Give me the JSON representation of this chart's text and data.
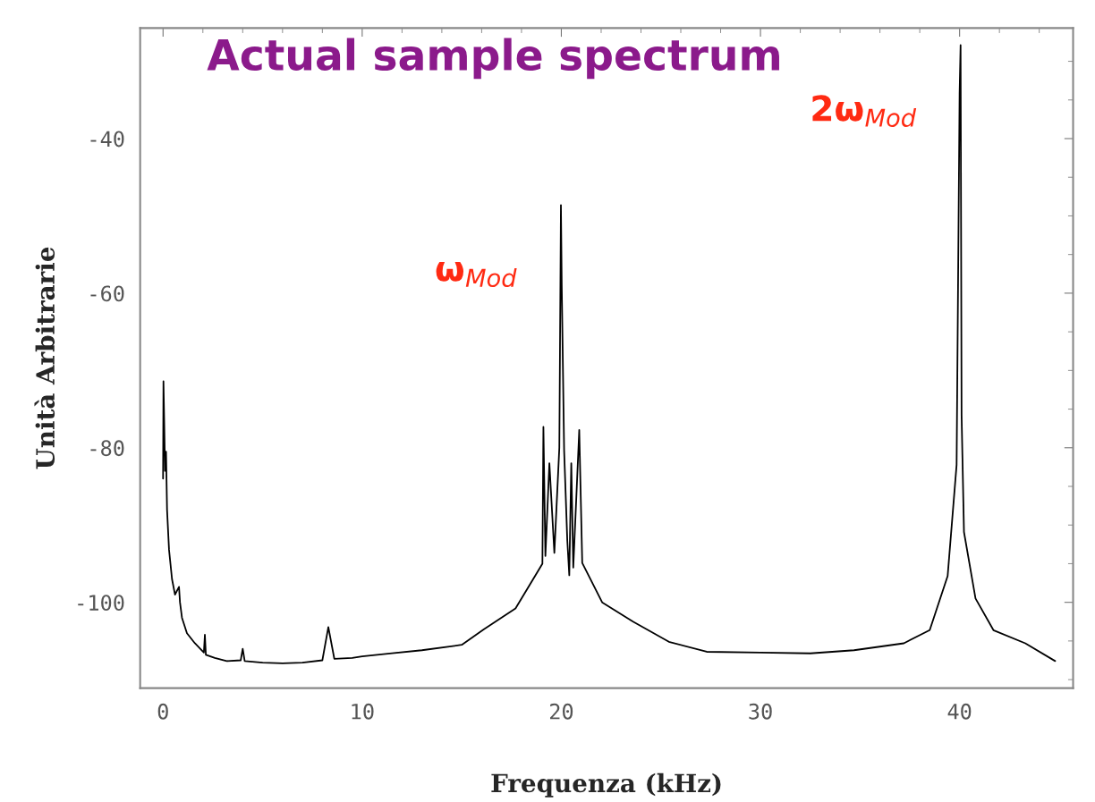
{
  "chart_data": {
    "type": "line",
    "title": "Actual sample spectrum",
    "xlabel": "Frequenza (kHz)",
    "ylabel": "Unità Arbitrarie",
    "xlim": [
      -1.15,
      45.7
    ],
    "ylim": [
      -111.1,
      -25.7
    ],
    "xticks": [
      0,
      10,
      20,
      30,
      40
    ],
    "yticks": [
      -40,
      -60,
      -80,
      -100
    ],
    "series": [
      {
        "color": "#000000",
        "x": [
          0,
          0.02,
          0.06,
          0.1,
          0.15,
          0.2,
          0.3,
          0.45,
          0.6,
          0.8,
          0.85,
          0.95,
          1.2,
          1.6,
          2.05,
          2.1,
          2.15,
          2.6,
          3.2,
          3.9,
          4.0,
          4.1,
          5.0,
          6.0,
          7.0,
          8.0,
          8.3,
          8.6,
          9.5,
          10.0,
          11.5,
          13.0,
          15.0,
          16.1,
          17.7,
          18.7,
          19.05,
          19.1,
          19.2,
          19.4,
          19.65,
          19.9,
          19.98,
          20.02,
          20.14,
          20.3,
          20.4,
          20.5,
          20.6,
          20.9,
          21.05,
          22.05,
          23.6,
          25.4,
          27.3,
          30.0,
          32.5,
          34.7,
          37.2,
          38.5,
          39.4,
          39.85,
          40.0,
          40.05,
          40.1,
          40.22,
          40.8,
          41.7,
          43.3,
          44.8
        ],
        "values": [
          -84,
          -71.4,
          -77,
          -83,
          -80.5,
          -88,
          -93.2,
          -97,
          -99,
          -98,
          -100,
          -102,
          -104,
          -105.3,
          -106.5,
          -104.2,
          -106.8,
          -107.2,
          -107.6,
          -107.5,
          -106,
          -107.6,
          -107.8,
          -107.9,
          -107.8,
          -107.5,
          -103.2,
          -107.3,
          -107.2,
          -107,
          -106.6,
          -106.2,
          -105.5,
          -103.5,
          -100.8,
          -96.5,
          -95,
          -77.3,
          -94,
          -82,
          -93.6,
          -80,
          -48.6,
          -58.9,
          -80.3,
          -92,
          -96.5,
          -82,
          -95.5,
          -77.7,
          -94.9,
          -100,
          -102.5,
          -105.1,
          -106.4,
          -106.5,
          -106.6,
          -106.2,
          -105.3,
          -103.6,
          -96.6,
          -82.2,
          -34.2,
          -27.9,
          -75.8,
          -90.9,
          -99.5,
          -103.6,
          -105.3,
          -107.6
        ]
      }
    ],
    "annotations": [
      {
        "text": "ω$_{Mod}$",
        "x": 20,
        "y": -48.6
      },
      {
        "text": "2ω$_{Mod}$",
        "x": 40.05,
        "y": -27.9
      }
    ]
  }
}
